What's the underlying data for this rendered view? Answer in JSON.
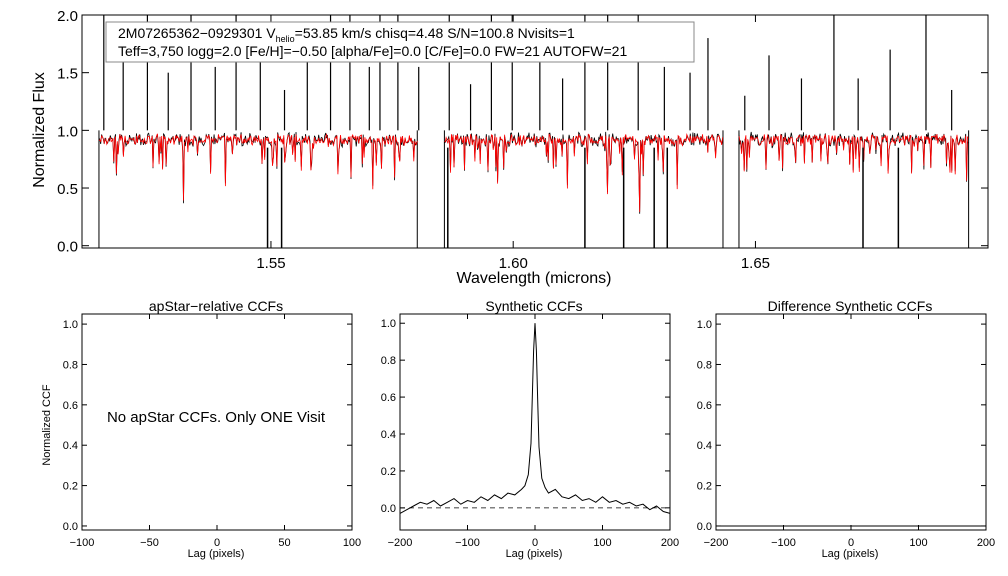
{
  "chart_data": [
    {
      "id": "spectrum",
      "type": "line",
      "xlabel": "Wavelength (microns)",
      "ylabel": "Normalized Flux",
      "xlim": [
        1.511,
        1.698
      ],
      "ylim": [
        -0.02,
        2.0
      ],
      "xticks": [
        {
          "value": 1.55,
          "label": "1.55"
        },
        {
          "value": 1.6,
          "label": "1.60"
        },
        {
          "value": 1.65,
          "label": "1.65"
        }
      ],
      "yticks": [
        {
          "value": 0.0,
          "label": "0.0"
        },
        {
          "value": 0.5,
          "label": "0.5"
        },
        {
          "value": 1.0,
          "label": "1.0"
        },
        {
          "value": 1.5,
          "label": "1.5"
        },
        {
          "value": 2.0,
          "label": "2.0"
        }
      ],
      "info_line1": "2M07265362−0929301  V",
      "info_line1_sub": "helio",
      "info_line1_rest": "=53.85 km/s  chisq=4.48  S/N=100.8  Nvisits=1",
      "info_line2": "Teff=3,750 logg=2.0 [Fe/H]=−0.50 [alpha/Fe]=0.0 [C/Fe]=0.0 FW=21 AUTOFW=21",
      "chips": [
        [
          1.5145,
          1.5802
        ],
        [
          1.5858,
          1.6433
        ],
        [
          1.6466,
          1.694
        ]
      ],
      "observed_color": "#000000",
      "model_color": "#ff0000",
      "emission_spikes": [
        1.5155,
        1.5195,
        1.5245,
        1.5288,
        1.5335,
        1.5385,
        1.5428,
        1.5478,
        1.5528,
        1.5575,
        1.5623,
        1.5663,
        1.5703,
        1.5725,
        1.5762,
        1.5805,
        1.5868,
        1.5912,
        1.5955,
        1.5998,
        1.6055,
        1.6102,
        1.6148,
        1.6195,
        1.6258,
        1.6312,
        1.6365,
        1.6402,
        1.6478,
        1.6528,
        1.6595,
        1.6662,
        1.6712,
        1.6778,
        1.6852,
        1.6905
      ],
      "emission_heights": [
        2.0,
        1.6,
        2.0,
        1.5,
        2.0,
        1.55,
        2.0,
        1.7,
        1.35,
        1.8,
        2.0,
        2.0,
        1.55,
        2.0,
        2.0,
        1.55,
        2.0,
        1.4,
        2.0,
        2.0,
        1.7,
        1.45,
        2.0,
        2.0,
        2.0,
        1.55,
        1.5,
        1.8,
        1.3,
        1.65,
        1.45,
        2.0,
        1.45,
        1.7,
        2.0,
        1.35
      ],
      "absorption_dips": [
        1.5493,
        1.5522,
        1.5865,
        1.6148,
        1.6228,
        1.6291,
        1.6318,
        1.6722,
        1.6795
      ],
      "absorption_mins": [
        0.0,
        0.0,
        0.0,
        0.0,
        0.0,
        0.0,
        0.0,
        0.0,
        0.0
      ]
    },
    {
      "id": "apstar-ccf",
      "type": "line",
      "title": "apStar−relative CCFs",
      "xlabel": "Lag (pixels)",
      "ylabel": "Normalized CCF",
      "xlim": [
        -100,
        100
      ],
      "ylim": [
        -0.02,
        1.05
      ],
      "xticks": [
        {
          "value": -100,
          "label": "−100"
        },
        {
          "value": -50,
          "label": "−50"
        },
        {
          "value": 0,
          "label": "0"
        },
        {
          "value": 50,
          "label": "50"
        },
        {
          "value": 100,
          "label": "100"
        }
      ],
      "yticks": [
        {
          "value": 0.0,
          "label": "0.0"
        },
        {
          "value": 0.2,
          "label": "0.2"
        },
        {
          "value": 0.4,
          "label": "0.4"
        },
        {
          "value": 0.6,
          "label": "0.6"
        },
        {
          "value": 0.8,
          "label": "0.8"
        },
        {
          "value": 1.0,
          "label": "1.0"
        }
      ],
      "annotation": "No apStar CCFs.  Only ONE Visit"
    },
    {
      "id": "synthetic-ccf",
      "type": "line",
      "title": "Synthetic CCFs",
      "xlabel": "Lag (pixels)",
      "xlim": [
        -200,
        200
      ],
      "ylim": [
        -0.12,
        1.05
      ],
      "xticks": [
        {
          "value": -200,
          "label": "−200"
        },
        {
          "value": -100,
          "label": "−100"
        },
        {
          "value": 0,
          "label": "0"
        },
        {
          "value": 100,
          "label": "100"
        },
        {
          "value": 200,
          "label": "200"
        }
      ],
      "yticks": [
        {
          "value": 0.0,
          "label": "0.0"
        },
        {
          "value": 0.2,
          "label": "0.2"
        },
        {
          "value": 0.4,
          "label": "0.4"
        },
        {
          "value": 0.6,
          "label": "0.6"
        },
        {
          "value": 0.8,
          "label": "0.8"
        },
        {
          "value": 1.0,
          "label": "1.0"
        }
      ],
      "x": [
        -200,
        -190,
        -180,
        -170,
        -160,
        -150,
        -140,
        -130,
        -120,
        -110,
        -100,
        -90,
        -80,
        -70,
        -60,
        -50,
        -40,
        -30,
        -20,
        -15,
        -10,
        -6,
        -4,
        -2,
        0,
        2,
        4,
        6,
        10,
        15,
        20,
        30,
        40,
        50,
        60,
        70,
        80,
        90,
        100,
        110,
        120,
        130,
        140,
        150,
        160,
        170,
        180,
        190,
        200
      ],
      "y": [
        -0.03,
        -0.01,
        0.01,
        0.03,
        0.02,
        0.04,
        0.01,
        0.03,
        0.05,
        0.02,
        0.04,
        0.03,
        0.06,
        0.04,
        0.07,
        0.05,
        0.08,
        0.07,
        0.1,
        0.12,
        0.18,
        0.35,
        0.6,
        0.85,
        1.0,
        0.85,
        0.58,
        0.33,
        0.16,
        0.11,
        0.08,
        0.1,
        0.06,
        0.05,
        0.07,
        0.04,
        0.05,
        0.03,
        0.06,
        0.03,
        0.04,
        0.02,
        0.03,
        0.01,
        0.02,
        -0.01,
        0.01,
        -0.02,
        -0.03
      ],
      "zero_line": 0.0
    },
    {
      "id": "difference-ccf",
      "type": "line",
      "title": "Difference Synthetic CCFs",
      "xlabel": "Lag (pixels)",
      "xlim": [
        -200,
        200
      ],
      "ylim": [
        -0.02,
        1.05
      ],
      "xticks": [
        {
          "value": -200,
          "label": "−200"
        },
        {
          "value": -100,
          "label": "−100"
        },
        {
          "value": 0,
          "label": "0"
        },
        {
          "value": 100,
          "label": "100"
        },
        {
          "value": 200,
          "label": "200"
        }
      ],
      "yticks": [
        {
          "value": 0.0,
          "label": "0.0"
        },
        {
          "value": 0.2,
          "label": "0.2"
        },
        {
          "value": 0.4,
          "label": "0.4"
        },
        {
          "value": 0.6,
          "label": "0.6"
        },
        {
          "value": 0.8,
          "label": "0.8"
        },
        {
          "value": 1.0,
          "label": "1.0"
        }
      ],
      "x": [
        -200,
        200
      ],
      "y": [
        0.0,
        0.0
      ]
    }
  ]
}
